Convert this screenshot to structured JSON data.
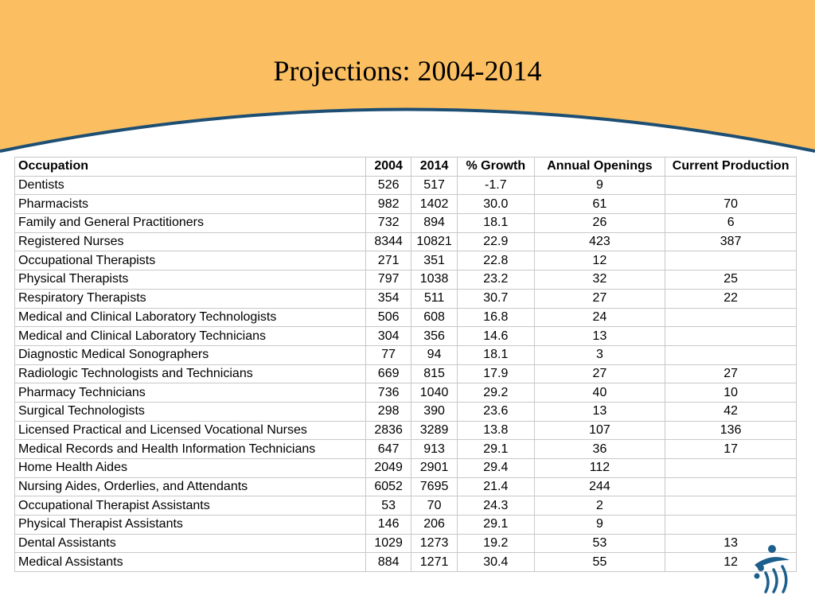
{
  "slide": {
    "title": "Projections: 2004-2014"
  },
  "colors": {
    "header_fill": "#fbbf62",
    "header_curve": "#1d4e74",
    "table_border": "#c8c8c8",
    "logo": "#1d5f8c"
  },
  "table": {
    "headers": [
      "Occupation",
      "2004",
      "2014",
      "% Growth",
      "Annual Openings",
      "Current Production"
    ],
    "rows": [
      [
        "Dentists",
        "526",
        "517",
        "-1.7",
        "9",
        ""
      ],
      [
        "Pharmacists",
        "982",
        "1402",
        "30.0",
        "61",
        "70"
      ],
      [
        "Family and General Practitioners",
        "732",
        "894",
        "18.1",
        "26",
        "6"
      ],
      [
        "Registered Nurses",
        "8344",
        "10821",
        "22.9",
        "423",
        "387"
      ],
      [
        "Occupational Therapists",
        "271",
        "351",
        "22.8",
        "12",
        ""
      ],
      [
        "Physical Therapists",
        "797",
        "1038",
        "23.2",
        "32",
        "25"
      ],
      [
        "Respiratory Therapists",
        "354",
        "511",
        "30.7",
        "27",
        "22"
      ],
      [
        "Medical and Clinical Laboratory Technologists",
        "506",
        "608",
        "16.8",
        "24",
        ""
      ],
      [
        "Medical and Clinical Laboratory Technicians",
        "304",
        "356",
        "14.6",
        "13",
        ""
      ],
      [
        "Diagnostic Medical Sonographers",
        "77",
        "94",
        "18.1",
        "3",
        ""
      ],
      [
        "Radiologic Technologists and Technicians",
        "669",
        "815",
        "17.9",
        "27",
        "27"
      ],
      [
        "Pharmacy Technicians",
        "736",
        "1040",
        "29.2",
        "40",
        "10"
      ],
      [
        "Surgical Technologists",
        "298",
        "390",
        "23.6",
        "13",
        "42"
      ],
      [
        "Licensed Practical and Licensed Vocational Nurses",
        "2836",
        "3289",
        "13.8",
        "107",
        "136"
      ],
      [
        "Medical Records and Health Information Technicians",
        "647",
        "913",
        "29.1",
        "36",
        "17"
      ],
      [
        "Home Health Aides",
        "2049",
        "2901",
        "29.4",
        "112",
        ""
      ],
      [
        "Nursing Aides, Orderlies, and Attendants",
        "6052",
        "7695",
        "21.4",
        "244",
        ""
      ],
      [
        "Occupational Therapist Assistants",
        "53",
        "70",
        "24.3",
        "2",
        ""
      ],
      [
        "Physical Therapist Assistants",
        "146",
        "206",
        "29.1",
        "9",
        ""
      ],
      [
        "Dental Assistants",
        "1029",
        "1273",
        "19.2",
        "53",
        "13"
      ],
      [
        "Medical Assistants",
        "884",
        "1271",
        "30.4",
        "55",
        "12"
      ]
    ]
  },
  "logo": {
    "icon": "people-logo-icon"
  }
}
